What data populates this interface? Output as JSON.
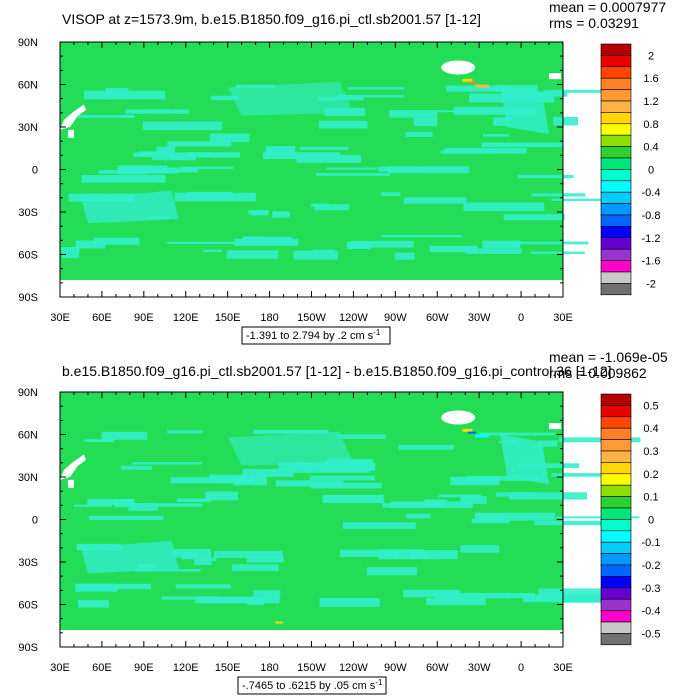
{
  "chart_data": [
    {
      "type": "heatmap",
      "title": "VISOP at z=1573.9m, b.e15.B1850.f09_g16.pi_ctl.sb2001.57 [1-12]",
      "mean_text": "mean = 0.0007977",
      "rms_text": "rms = 0.03291",
      "range_text": "-1.391 to 2.794 by .2 cm s",
      "range_exp": "-1",
      "x_tick_labels": [
        "30E",
        "60E",
        "90E",
        "120E",
        "150E",
        "180",
        "150W",
        "120W",
        "90W",
        "60W",
        "30W",
        "0",
        "30E"
      ],
      "y_tick_labels": [
        "90N",
        "60N",
        "30N",
        "0",
        "30S",
        "60S",
        "90S"
      ],
      "xlim": [
        30,
        390
      ],
      "ylim": [
        -90,
        90
      ],
      "colorbar_labels": [
        "2",
        "1.6",
        "1.2",
        "0.8",
        "0.4",
        "0",
        "-0.4",
        "-0.8",
        "-1.2",
        "-1.6",
        "-2"
      ],
      "colorbar_colors": [
        "#b30000",
        "#e60000",
        "#ff4500",
        "#ff7f24",
        "#ff9a35",
        "#ffb347",
        "#ffd700",
        "#ffff00",
        "#8fe000",
        "#2ed12e",
        "#00e57a",
        "#00ffcc",
        "#00ffff",
        "#00ccff",
        "#0099ff",
        "#0066ff",
        "#0000ff",
        "#6600cc",
        "#9933cc",
        "#ff00cc",
        "#c8c8c8",
        "#707070"
      ],
      "dominant_color": "#22dd55",
      "secondary_color": "#33eecc"
    },
    {
      "type": "heatmap",
      "title": "b.e15.B1850.f09_g16.pi_ctl.sb2001.57 [1-12] - b.e15.B1850.f09_g16.pi_control.36 [1-12]",
      "mean_text": "mean = -1.069e-05",
      "rms_text": "rms = 0.009862",
      "range_text": "-.7465 to .6215 by .05 cm s",
      "range_exp": "-1",
      "x_tick_labels": [
        "30E",
        "60E",
        "90E",
        "120E",
        "150E",
        "180",
        "150W",
        "120W",
        "90W",
        "60W",
        "30W",
        "0",
        "30E"
      ],
      "y_tick_labels": [
        "90N",
        "60N",
        "30N",
        "0",
        "30S",
        "60S",
        "90S"
      ],
      "xlim": [
        30,
        390
      ],
      "ylim": [
        -90,
        90
      ],
      "colorbar_labels": [
        "0.5",
        "0.4",
        "0.3",
        "0.2",
        "0.1",
        "0",
        "-0.1",
        "-0.2",
        "-0.3",
        "-0.4",
        "-0.5"
      ],
      "colorbar_colors": [
        "#b30000",
        "#e60000",
        "#ff4500",
        "#ff7f24",
        "#ff9a35",
        "#ffb347",
        "#ffd700",
        "#ffff00",
        "#8fe000",
        "#2ed12e",
        "#00e57a",
        "#00ffcc",
        "#00ffff",
        "#00ccff",
        "#0099ff",
        "#0066ff",
        "#0000ff",
        "#6600cc",
        "#9933cc",
        "#ff00cc",
        "#c8c8c8",
        "#707070"
      ],
      "dominant_color": "#22dd55",
      "secondary_color": "#33eecc"
    }
  ]
}
